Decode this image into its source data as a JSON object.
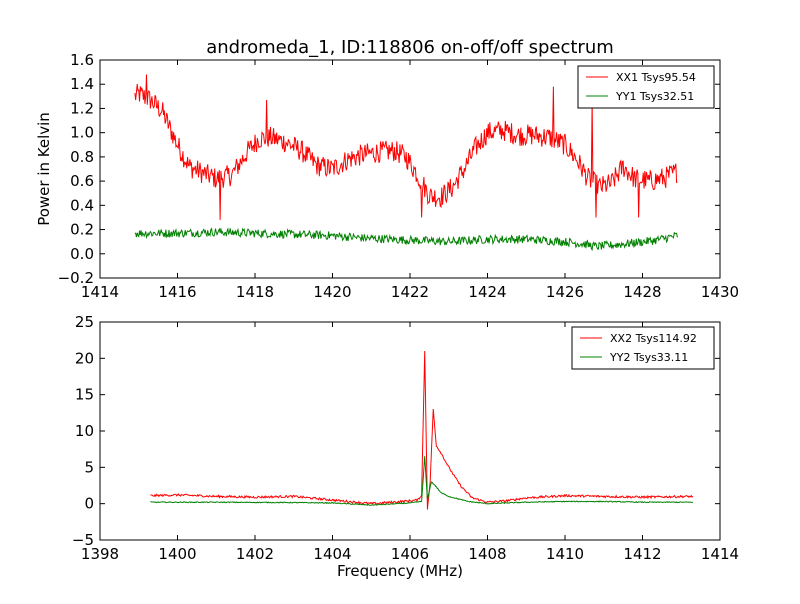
{
  "figure": {
    "title": "andromeda_1, ID:118806 on-off/off spectrum"
  },
  "chart_data": [
    {
      "type": "line",
      "title": "andromeda_1, ID:118806 on-off/off spectrum",
      "xlabel": "",
      "ylabel": "Power in Kelvin",
      "xlim": [
        1414,
        1430
      ],
      "ylim": [
        -0.2,
        1.6
      ],
      "xticks": [
        1414,
        1416,
        1418,
        1420,
        1422,
        1424,
        1426,
        1428,
        1430
      ],
      "xtick_labels": [
        "1414",
        "1416",
        "1418",
        "1420",
        "1422",
        "1424",
        "1426",
        "1428",
        "1430"
      ],
      "yticks": [
        -0.2,
        0.0,
        0.2,
        0.4,
        0.6,
        0.8,
        1.0,
        1.2,
        1.4,
        1.6
      ],
      "ytick_labels": [
        "−0.2",
        "0.0",
        "0.2",
        "0.4",
        "0.6",
        "0.8",
        "1.0",
        "1.2",
        "1.4",
        "1.6"
      ],
      "grid": false,
      "legend_position": "top-right",
      "series": [
        {
          "name": "XX1 Tsys95.54",
          "color": "#ff0000",
          "noise": 0.09,
          "x": [
            1414.9,
            1415.0,
            1415.3,
            1415.6,
            1416.0,
            1416.3,
            1416.7,
            1417.0,
            1417.4,
            1417.8,
            1418.1,
            1418.4,
            1418.8,
            1419.2,
            1419.6,
            1420.0,
            1420.4,
            1420.8,
            1421.2,
            1421.6,
            1421.9,
            1422.2,
            1422.5,
            1422.8,
            1423.1,
            1423.4,
            1423.7,
            1424.0,
            1424.4,
            1424.8,
            1425.2,
            1425.6,
            1426.0,
            1426.3,
            1426.6,
            1426.9,
            1427.2,
            1427.5,
            1427.8,
            1428.2,
            1428.6,
            1428.9
          ],
          "y": [
            1.3,
            1.32,
            1.27,
            1.18,
            0.9,
            0.72,
            0.66,
            0.62,
            0.65,
            0.84,
            0.95,
            0.96,
            0.92,
            0.85,
            0.73,
            0.7,
            0.78,
            0.82,
            0.84,
            0.85,
            0.8,
            0.65,
            0.48,
            0.47,
            0.55,
            0.7,
            0.88,
            1.0,
            1.02,
            0.98,
            0.98,
            0.96,
            0.9,
            0.78,
            0.62,
            0.55,
            0.58,
            0.72,
            0.62,
            0.6,
            0.63,
            0.68
          ],
          "spikes": [
            [
              1417.1,
              0.28
            ],
            [
              1422.3,
              0.3
            ],
            [
              1426.8,
              0.3
            ],
            [
              1427.9,
              0.3
            ],
            [
              1415.2,
              1.48
            ],
            [
              1418.3,
              1.27
            ],
            [
              1425.7,
              1.38
            ],
            [
              1426.7,
              1.27
            ]
          ]
        },
        {
          "name": "YY1 Tsys32.51",
          "color": "#008000",
          "noise": 0.035,
          "x": [
            1414.9,
            1416.0,
            1417.0,
            1418.0,
            1419.0,
            1420.0,
            1420.8,
            1421.5,
            1422.2,
            1423.0,
            1424.0,
            1425.0,
            1426.0,
            1426.5,
            1426.8,
            1427.5,
            1428.3,
            1428.9
          ],
          "y": [
            0.17,
            0.17,
            0.18,
            0.17,
            0.16,
            0.15,
            0.13,
            0.12,
            0.11,
            0.1,
            0.12,
            0.12,
            0.1,
            0.08,
            0.06,
            0.08,
            0.11,
            0.15
          ],
          "spikes": []
        }
      ]
    },
    {
      "type": "line",
      "title": "",
      "xlabel": "Frequency (MHz)",
      "ylabel": "",
      "xlim": [
        1398,
        1414
      ],
      "ylim": [
        -5,
        25
      ],
      "xticks": [
        1398,
        1400,
        1402,
        1404,
        1406,
        1408,
        1410,
        1412,
        1414
      ],
      "xtick_labels": [
        "1398",
        "1400",
        "1402",
        "1404",
        "1406",
        "1408",
        "1410",
        "1412",
        "1414"
      ],
      "yticks": [
        -5,
        0,
        5,
        10,
        15,
        20,
        25
      ],
      "ytick_labels": [
        "−5",
        "0",
        "5",
        "10",
        "15",
        "20",
        "25"
      ],
      "grid": false,
      "legend_position": "top-right",
      "series": [
        {
          "name": "XX2 Tsys114.92",
          "color": "#ff0000",
          "noise": 0.15,
          "x": [
            1399.3,
            1400.0,
            1401.0,
            1402.0,
            1403.0,
            1404.0,
            1405.0,
            1405.8,
            1406.2,
            1406.3,
            1406.38,
            1406.45,
            1406.52,
            1406.6,
            1406.68,
            1406.8,
            1407.0,
            1407.3,
            1407.6,
            1408.0,
            1408.5,
            1409.0,
            1410.0,
            1411.0,
            1412.0,
            1413.3
          ],
          "y": [
            1.1,
            1.2,
            1.0,
            0.9,
            1.0,
            0.5,
            0.0,
            0.3,
            0.5,
            1.2,
            21.0,
            -0.8,
            3.0,
            13.0,
            8.0,
            7.0,
            5.0,
            2.5,
            0.8,
            0.2,
            0.4,
            0.8,
            1.1,
            1.0,
            0.9,
            1.0
          ],
          "spikes": []
        },
        {
          "name": "YY2 Tsys33.11",
          "color": "#008000",
          "noise": 0.06,
          "x": [
            1399.3,
            1401.0,
            1403.0,
            1404.0,
            1405.0,
            1406.0,
            1406.3,
            1406.38,
            1406.45,
            1406.55,
            1406.65,
            1406.8,
            1407.0,
            1407.5,
            1408.0,
            1409.0,
            1410.0,
            1411.0,
            1412.0,
            1413.3
          ],
          "y": [
            0.2,
            0.2,
            0.15,
            0.1,
            -0.2,
            0.1,
            0.3,
            6.5,
            0.5,
            3.0,
            2.5,
            1.5,
            1.0,
            0.3,
            0.0,
            0.2,
            0.3,
            0.3,
            0.2,
            0.2
          ],
          "spikes": []
        }
      ]
    }
  ]
}
